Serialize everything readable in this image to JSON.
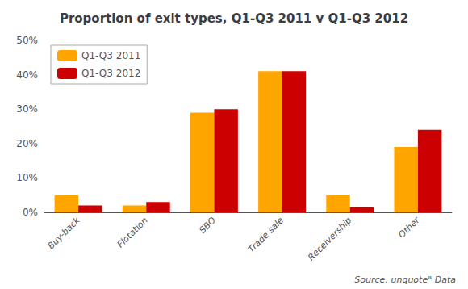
{
  "chart_data": {
    "type": "bar",
    "title": "Proportion of exit types, Q1-Q3 2011 v Q1-Q3 2012",
    "categories": [
      "Buy-back",
      "Flotation",
      "SBO",
      "Trade sale",
      "Receivership",
      "Other"
    ],
    "series": [
      {
        "name": "Q1-Q3 2011",
        "color": "#FFA500",
        "values": [
          5,
          2,
          29,
          41,
          5,
          19
        ]
      },
      {
        "name": "Q1-Q3 2012",
        "color": "#CC0000",
        "values": [
          2,
          3,
          30,
          41,
          1.5,
          24
        ]
      }
    ],
    "ylim": [
      0,
      50
    ],
    "yticks": [
      {
        "value": 0,
        "label": "0%"
      },
      {
        "value": 10,
        "label": "10%"
      },
      {
        "value": 20,
        "label": "20%"
      },
      {
        "value": 30,
        "label": "30%"
      },
      {
        "value": 40,
        "label": "40%"
      },
      {
        "value": 50,
        "label": "50%"
      }
    ],
    "grid": false,
    "legend": "upper left",
    "annotations": [
      "Source: unquote\" Data"
    ]
  }
}
